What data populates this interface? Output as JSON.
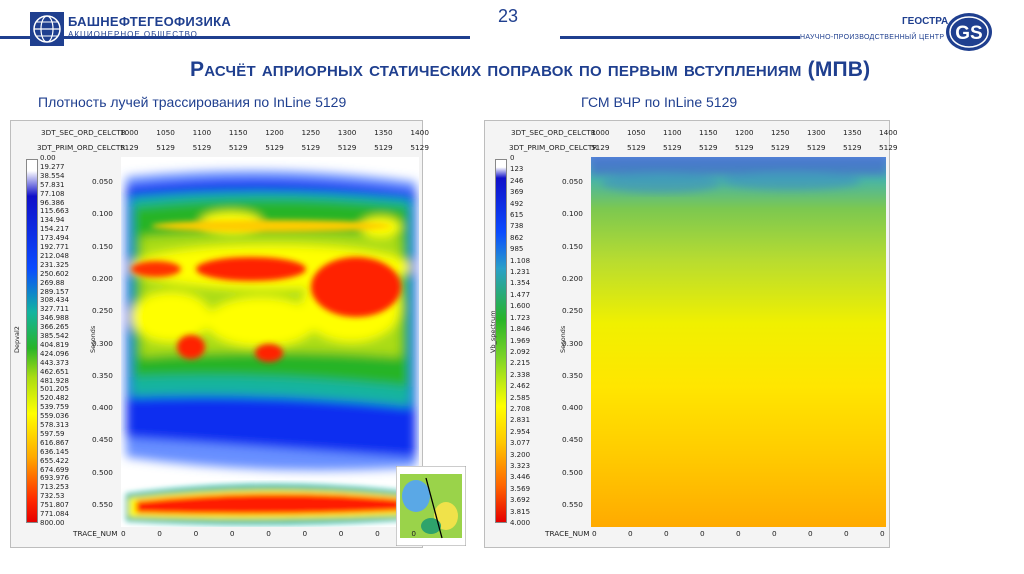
{
  "header": {
    "org_left_name": "БАШНЕФТЕГЕОФИЗИКА",
    "org_left_sub": "АКЦИОНЕРНОЕ ОБЩЕСТВО",
    "page_number": "23",
    "org_right_name": "ГЕОСТРА",
    "org_right_sub": "НАУЧНО-ПРОИЗВОДСТВЕННЫЙ ЦЕНТР",
    "org_right_logo": "GS",
    "brand_color": "#1f3f8f"
  },
  "slide": {
    "title": "Расчёт априорных статических поправок по первым вступлениям (МПВ)",
    "subtitle_left": "Плотность лучей трассирования по InLine 5129",
    "subtitle_right": "ГСМ ВЧР по InLine 5129"
  },
  "panels": [
    {
      "row1_label": "3DT_SEC_ORD_CELCTR",
      "row2_label": "3DT_PRIM_ORD_CELCTR",
      "row1_values": [
        "1000",
        "1050",
        "1100",
        "1150",
        "1200",
        "1250",
        "1300",
        "1350",
        "1400"
      ],
      "row2_values": [
        "5129",
        "5129",
        "5129",
        "5129",
        "5129",
        "5129",
        "5129",
        "5129",
        "5129"
      ],
      "bottom_label": "TRACE_NUM",
      "bottom_values": [
        "0",
        "0",
        "0",
        "0",
        "0",
        "0",
        "0",
        "0",
        "0"
      ],
      "y_axis_label": "Seconds",
      "y_ticks": [
        "0.050",
        "0.100",
        "0.150",
        "0.200",
        "0.250",
        "0.300",
        "0.350",
        "0.400",
        "0.450",
        "0.500",
        "0.550"
      ],
      "colorbar_name": "Depval2",
      "colorbar_values": [
        "0.00",
        "19.277",
        "38.554",
        "57.831",
        "77.108",
        "96.386",
        "115.663",
        "134.94",
        "154.217",
        "173.494",
        "192.771",
        "212.048",
        "231.325",
        "250.602",
        "269.88",
        "289.157",
        "308.434",
        "327.711",
        "346.988",
        "366.265",
        "385.542",
        "404.819",
        "424.096",
        "443.373",
        "462.651",
        "481.928",
        "501.205",
        "520.482",
        "539.759",
        "559.036",
        "578.313",
        "597.59",
        "616.867",
        "636.145",
        "655.422",
        "674.699",
        "693.976",
        "713.253",
        "732.53",
        "751.807",
        "771.084",
        "800.00"
      ]
    },
    {
      "row1_label": "3DT_SEC_ORD_CELCTR",
      "row2_label": "3DT_PRIM_ORD_CELCTR",
      "row1_values": [
        "1000",
        "1050",
        "1100",
        "1150",
        "1200",
        "1250",
        "1300",
        "1350",
        "1400"
      ],
      "row2_values": [
        "5129",
        "5129",
        "5129",
        "5129",
        "5129",
        "5129",
        "5129",
        "5129",
        "5129"
      ],
      "bottom_label": "TRACE_NUM",
      "bottom_values": [
        "0",
        "0",
        "0",
        "0",
        "0",
        "0",
        "0",
        "0",
        "0"
      ],
      "y_axis_label": "Seconds",
      "y_ticks": [
        "0.050",
        "0.100",
        "0.150",
        "0.200",
        "0.250",
        "0.300",
        "0.350",
        "0.400",
        "0.450",
        "0.500",
        "0.550"
      ],
      "colorbar_name": "Vb_spectrum",
      "colorbar_values": [
        "0",
        "123",
        "246",
        "369",
        "492",
        "615",
        "738",
        "862",
        "985",
        "1.108",
        "1.231",
        "1.354",
        "1.477",
        "1.600",
        "1.723",
        "1.846",
        "1.969",
        "2.092",
        "2.215",
        "2.338",
        "2.462",
        "2.585",
        "2.708",
        "2.831",
        "2.954",
        "3.077",
        "3.200",
        "3.323",
        "3.446",
        "3.569",
        "3.692",
        "3.815",
        "4.000"
      ]
    }
  ]
}
